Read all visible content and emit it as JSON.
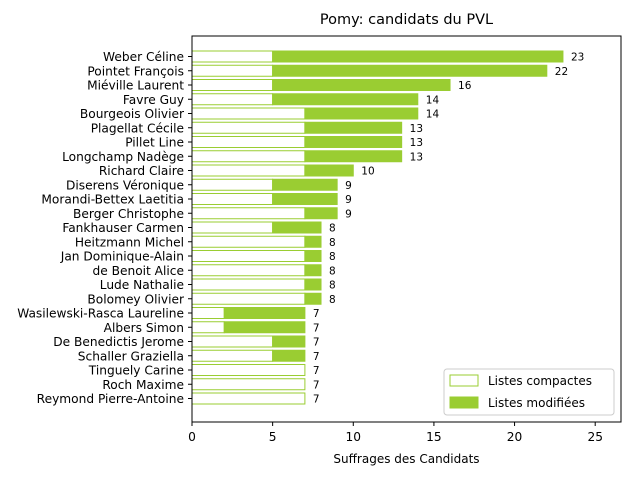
{
  "chart_data": {
    "type": "bar",
    "orientation": "horizontal",
    "stacked": true,
    "title": "Pomy: candidats du PVL",
    "xlabel": "Suffrages des Candidats",
    "ylabel": "",
    "xlim": [
      0,
      26.6
    ],
    "xticks": [
      0,
      5,
      10,
      15,
      20,
      25
    ],
    "grid": false,
    "legend_position": "lower-right",
    "categories": [
      "Weber Céline",
      "Pointet François",
      "Miéville Laurent",
      "Favre Guy",
      "Bourgeois Olivier",
      "Plagellat Cécile",
      "Pillet Line",
      "Longchamp Nadège",
      "Richard Claire",
      "Diserens Véronique",
      "Morandi-Bettex Laetitia",
      "Berger Christophe",
      "Fankhauser Carmen",
      "Heitzmann Michel",
      "Jan Dominique-Alain",
      "de Benoit Alice",
      "Lude Nathalie",
      "Bolomey Olivier",
      "Wasilewski-Rasca Laureline",
      "Albers Simon",
      "De Benedictis Jerome",
      "Schaller Graziella",
      "Tinguely Carine",
      "Roch Maxime",
      "Reymond Pierre-Antoine"
    ],
    "series": [
      {
        "name": "Listes compactes",
        "style": "outline",
        "color": "#9acd32",
        "values": [
          5,
          5,
          5,
          5,
          7,
          7,
          7,
          7,
          7,
          5,
          5,
          7,
          5,
          7,
          7,
          7,
          7,
          7,
          2,
          2,
          5,
          5,
          7,
          7,
          7
        ]
      },
      {
        "name": "Listes modifiées",
        "style": "filled",
        "color": "#9acd32",
        "values": [
          18,
          17,
          11,
          9,
          7,
          6,
          6,
          6,
          3,
          4,
          4,
          2,
          3,
          1,
          1,
          1,
          1,
          1,
          5,
          5,
          2,
          2,
          0,
          0,
          0
        ]
      }
    ],
    "totals": [
      23,
      22,
      16,
      14,
      14,
      13,
      13,
      13,
      10,
      9,
      9,
      9,
      8,
      8,
      8,
      8,
      8,
      8,
      7,
      7,
      7,
      7,
      7,
      7,
      7
    ]
  }
}
